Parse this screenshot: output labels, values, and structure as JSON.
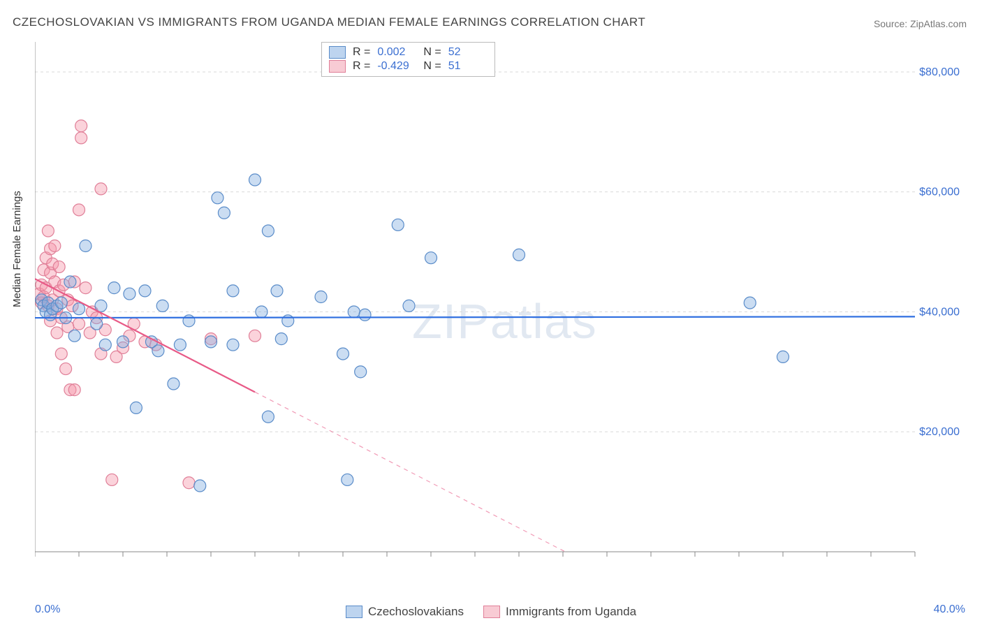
{
  "title": "CZECHOSLOVAKIAN VS IMMIGRANTS FROM UGANDA MEDIAN FEMALE EARNINGS CORRELATION CHART",
  "source": "Source: ZipAtlas.com",
  "ylabel": "Median Female Earnings",
  "watermark": "ZIPatlas",
  "chart": {
    "type": "scatter",
    "background_color": "#ffffff",
    "grid_color": "#d9d9d9",
    "axis_color": "#888888",
    "xlim": [
      0,
      40
    ],
    "ylim": [
      0,
      85000
    ],
    "x_ticks": [
      0,
      40
    ],
    "x_tick_labels": [
      "0.0%",
      "40.0%"
    ],
    "x_minor_tick_step": 2,
    "y_ticks": [
      20000,
      40000,
      60000,
      80000
    ],
    "y_tick_labels": [
      "$20,000",
      "$40,000",
      "$60,000",
      "$80,000"
    ],
    "marker_radius": 8.5,
    "marker_stroke_width": 1.2,
    "series": [
      {
        "name": "Czechoslovakians",
        "fill": "rgba(130,175,225,0.42)",
        "stroke": "#5a8cc9",
        "R_label": "R =",
        "R": "0.002",
        "N_label": "N =",
        "N": "52",
        "trend": {
          "y_at_x0": 39000,
          "y_at_x40": 39200,
          "color": "#2f6fe0",
          "width": 2.2,
          "solid_until_x": 40
        },
        "points": [
          [
            0.3,
            42000
          ],
          [
            0.4,
            41000
          ],
          [
            0.5,
            40000
          ],
          [
            0.6,
            41500
          ],
          [
            0.7,
            39500
          ],
          [
            0.8,
            40500
          ],
          [
            1.0,
            41000
          ],
          [
            1.2,
            41500
          ],
          [
            1.4,
            39000
          ],
          [
            1.6,
            45000
          ],
          [
            1.8,
            36000
          ],
          [
            2.0,
            40500
          ],
          [
            2.3,
            51000
          ],
          [
            2.8,
            38000
          ],
          [
            3.0,
            41000
          ],
          [
            3.2,
            34500
          ],
          [
            3.6,
            44000
          ],
          [
            4.0,
            35000
          ],
          [
            4.3,
            43000
          ],
          [
            4.6,
            24000
          ],
          [
            5.0,
            43500
          ],
          [
            5.3,
            35000
          ],
          [
            5.6,
            33500
          ],
          [
            5.8,
            41000
          ],
          [
            6.3,
            28000
          ],
          [
            6.6,
            34500
          ],
          [
            7.0,
            38500
          ],
          [
            7.5,
            11000
          ],
          [
            8.0,
            35000
          ],
          [
            8.3,
            59000
          ],
          [
            8.6,
            56500
          ],
          [
            9.0,
            43500
          ],
          [
            9.0,
            34500
          ],
          [
            10.0,
            62000
          ],
          [
            10.3,
            40000
          ],
          [
            10.6,
            22500
          ],
          [
            10.6,
            53500
          ],
          [
            11.0,
            43500
          ],
          [
            11.2,
            35500
          ],
          [
            11.5,
            38500
          ],
          [
            14.0,
            33000
          ],
          [
            14.2,
            12000
          ],
          [
            14.5,
            40000
          ],
          [
            14.8,
            30000
          ],
          [
            15.0,
            39500
          ],
          [
            16.5,
            54500
          ],
          [
            17.0,
            41000
          ],
          [
            18.0,
            49000
          ],
          [
            22.0,
            49500
          ],
          [
            32.5,
            41500
          ],
          [
            34.0,
            32500
          ],
          [
            13.0,
            42500
          ]
        ]
      },
      {
        "name": "Immigrants from Uganda",
        "fill": "rgba(245,150,170,0.42)",
        "stroke": "#e07f98",
        "R_label": "R =",
        "R": "-0.429",
        "N_label": "N =",
        "N": "51",
        "trend": {
          "y_at_x0": 45500,
          "y_at_x40": -30000,
          "color": "#e85a87",
          "width": 2.2,
          "solid_until_x": 10
        },
        "points": [
          [
            0.2,
            43000
          ],
          [
            0.3,
            44500
          ],
          [
            0.3,
            41500
          ],
          [
            0.4,
            47000
          ],
          [
            0.4,
            42500
          ],
          [
            0.5,
            49000
          ],
          [
            0.5,
            44000
          ],
          [
            0.6,
            53500
          ],
          [
            0.6,
            41000
          ],
          [
            0.7,
            50500
          ],
          [
            0.7,
            46500
          ],
          [
            0.7,
            38500
          ],
          [
            0.8,
            48000
          ],
          [
            0.8,
            42000
          ],
          [
            0.9,
            51000
          ],
          [
            0.9,
            45000
          ],
          [
            1.0,
            40500
          ],
          [
            1.0,
            36500
          ],
          [
            1.1,
            43500
          ],
          [
            1.1,
            47500
          ],
          [
            1.2,
            39000
          ],
          [
            1.2,
            33000
          ],
          [
            1.3,
            44500
          ],
          [
            1.4,
            30500
          ],
          [
            1.5,
            42000
          ],
          [
            1.5,
            37500
          ],
          [
            1.6,
            27000
          ],
          [
            1.7,
            41000
          ],
          [
            1.8,
            45000
          ],
          [
            1.8,
            27000
          ],
          [
            2.0,
            57000
          ],
          [
            2.0,
            38000
          ],
          [
            2.1,
            71000
          ],
          [
            2.1,
            69000
          ],
          [
            2.3,
            44000
          ],
          [
            2.5,
            36500
          ],
          [
            2.6,
            40000
          ],
          [
            2.8,
            39000
          ],
          [
            3.0,
            60500
          ],
          [
            3.0,
            33000
          ],
          [
            3.2,
            37000
          ],
          [
            3.5,
            12000
          ],
          [
            3.7,
            32500
          ],
          [
            4.0,
            34000
          ],
          [
            4.3,
            36000
          ],
          [
            4.5,
            38000
          ],
          [
            5.0,
            35000
          ],
          [
            5.5,
            34500
          ],
          [
            7.0,
            11500
          ],
          [
            8.0,
            35500
          ],
          [
            10.0,
            36000
          ]
        ]
      }
    ]
  }
}
